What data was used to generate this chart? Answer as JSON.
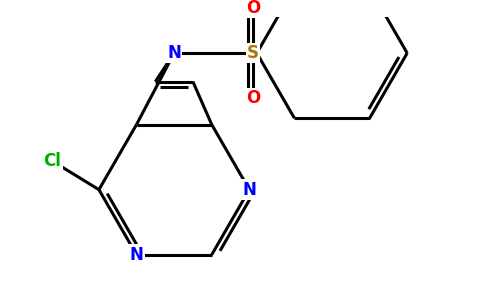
{
  "background_color": "#ffffff",
  "bond_color": "#000000",
  "bond_width": 2.2,
  "atom_colors": {
    "N": "#0000ff",
    "Cl": "#00aa00",
    "S": "#aa7700",
    "O": "#ff0000",
    "C": "#000000"
  },
  "font_size": 12
}
